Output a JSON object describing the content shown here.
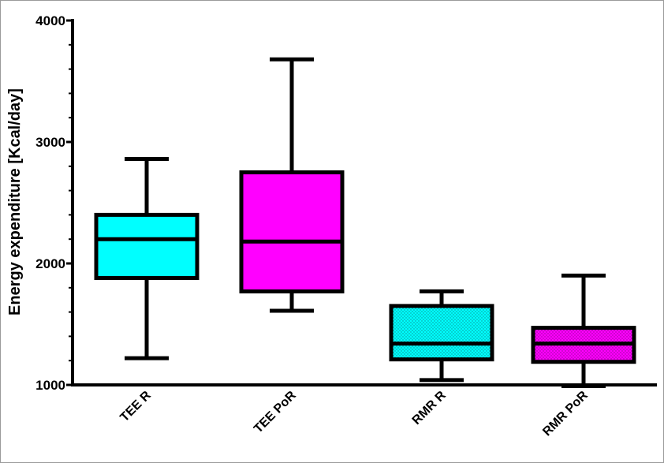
{
  "chart_data": {
    "type": "box",
    "ylabel": "Energy expenditure [Kcal/day]",
    "ylim": [
      1000,
      4000
    ],
    "yticks": [
      1000,
      2000,
      3000,
      4000
    ],
    "ytick_labels": [
      "1000",
      "2000",
      "3000",
      "4000"
    ],
    "grid": false,
    "legend": "none",
    "categories": [
      "TEE R",
      "TEE PoR",
      "RMR R",
      "RMR PoR"
    ],
    "series": [
      {
        "category": "TEE R",
        "min": 1220,
        "q1": 1880,
        "median": 2200,
        "q3": 2400,
        "max": 2860,
        "color": "#00FFFF",
        "pattern": "solid"
      },
      {
        "category": "TEE PoR",
        "min": 1610,
        "q1": 1770,
        "median": 2180,
        "q3": 2750,
        "max": 3680,
        "color": "#FF00FF",
        "pattern": "solid"
      },
      {
        "category": "RMR R",
        "min": 1040,
        "q1": 1210,
        "median": 1340,
        "q3": 1650,
        "max": 1770,
        "color": "#00FFFF",
        "pattern": "dotted"
      },
      {
        "category": "RMR PoR",
        "min": 990,
        "q1": 1190,
        "median": 1340,
        "q3": 1470,
        "max": 1900,
        "color": "#FF00FF",
        "pattern": "dotted"
      }
    ]
  }
}
